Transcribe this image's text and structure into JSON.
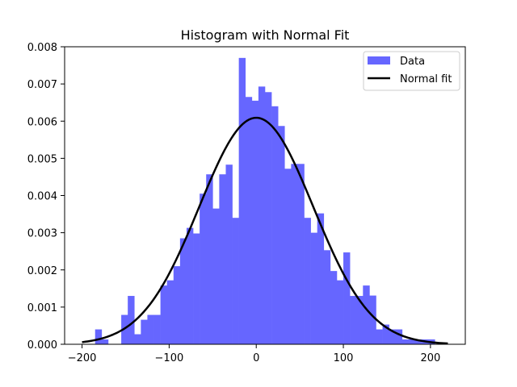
{
  "chart_data": {
    "type": "bar",
    "title": "Histogram with Normal Fit",
    "xlabel": "",
    "ylabel": "",
    "xlim": [
      -220,
      240
    ],
    "ylim": [
      0,
      0.008
    ],
    "x_ticks": [
      -200,
      -100,
      0,
      100,
      200
    ],
    "x_tick_labels": [
      "−200",
      "−100",
      "0",
      "100",
      "200"
    ],
    "y_ticks": [
      0,
      0.001,
      0.002,
      0.003,
      0.004,
      0.005,
      0.006,
      0.007,
      0.008
    ],
    "y_tick_labels": [
      "0.000",
      "0.001",
      "0.002",
      "0.003",
      "0.004",
      "0.005",
      "0.006",
      "0.007",
      "0.008"
    ],
    "grid": false,
    "legend_position": "top-right",
    "series": [
      {
        "name": "Data",
        "kind": "histogram",
        "color": "#6666ff",
        "bin_edges": [
          -185,
          -177.5,
          -170,
          -162.5,
          -155,
          -147.5,
          -140,
          -132.5,
          -125,
          -117.5,
          -110,
          -102.5,
          -95,
          -87.5,
          -80,
          -72.5,
          -65,
          -57.5,
          -50,
          -42.5,
          -35,
          -27.5,
          -20,
          -12.5,
          -5,
          2.5,
          10,
          17.5,
          25,
          32.5,
          40,
          47.5,
          55,
          62.5,
          70,
          77.5,
          85,
          92.5,
          100,
          107.5,
          115,
          122.5,
          130,
          137.5,
          145,
          152.5,
          160,
          167.5,
          175,
          182.5,
          190,
          197.5,
          205
        ],
        "values": [
          0.0004,
          0.00013,
          0,
          0,
          0.00079,
          0.0013,
          0.00027,
          0.00066,
          0.00079,
          0.00079,
          0.00158,
          0.00172,
          0.0021,
          0.00285,
          0.00313,
          0.00298,
          0.00405,
          0.00457,
          0.00365,
          0.00457,
          0.00483,
          0.0034,
          0.0077,
          0.00665,
          0.00655,
          0.00693,
          0.00678,
          0.0064,
          0.00587,
          0.00472,
          0.00485,
          0.00485,
          0.0034,
          0.003,
          0.00352,
          0.00253,
          0.00197,
          0.00172,
          0.00247,
          0.0013,
          0.0013,
          0.00158,
          0.00131,
          0.0004,
          0.00053,
          0.0004,
          0.0004,
          0.00013,
          0.00013,
          0.00013,
          0.00013,
          0.00013
        ]
      },
      {
        "name": "Normal fit",
        "kind": "line",
        "color": "#000000",
        "mean": 0,
        "std": 65.5,
        "x_range": [
          -200,
          220
        ]
      }
    ]
  }
}
